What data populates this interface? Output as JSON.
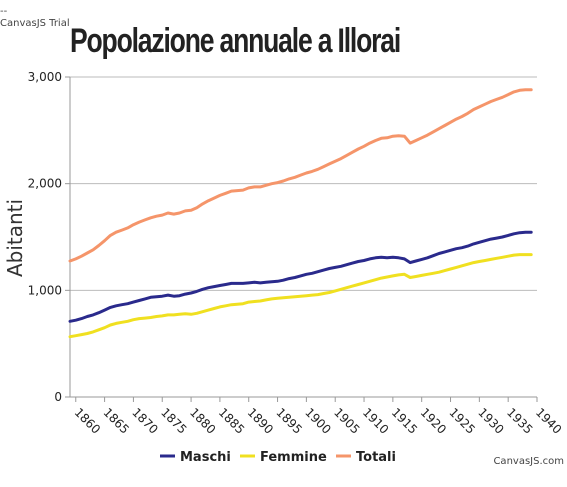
{
  "trial_text": "--\nCanvasJS Trial",
  "credit": "CanvasJS.com",
  "chart_data": {
    "type": "line",
    "title": "Popolazione annuale a Illorai",
    "xlabel": "",
    "ylabel": "Abitanti",
    "xlim": [
      1859,
      1940
    ],
    "ylim": [
      0,
      3000
    ],
    "y_ticks": [
      0,
      1000,
      2000,
      3000
    ],
    "y_tick_labels": [
      "0",
      "1,000",
      "2,000",
      "3,000"
    ],
    "x_ticks": [
      1860,
      1865,
      1870,
      1875,
      1880,
      1885,
      1890,
      1895,
      1900,
      1905,
      1910,
      1915,
      1920,
      1925,
      1930,
      1935,
      1940
    ],
    "grid": "horizontal",
    "legend_position": "bottom",
    "x": [
      1859,
      1860,
      1861,
      1862,
      1863,
      1864,
      1865,
      1866,
      1867,
      1868,
      1869,
      1870,
      1871,
      1872,
      1873,
      1874,
      1875,
      1876,
      1877,
      1878,
      1879,
      1880,
      1881,
      1882,
      1883,
      1884,
      1885,
      1886,
      1887,
      1888,
      1889,
      1890,
      1891,
      1892,
      1893,
      1894,
      1895,
      1896,
      1897,
      1898,
      1899,
      1900,
      1901,
      1902,
      1903,
      1904,
      1905,
      1906,
      1907,
      1908,
      1909,
      1910,
      1911,
      1912,
      1913,
      1914,
      1915,
      1916,
      1917,
      1918,
      1919,
      1920,
      1921,
      1922,
      1923,
      1924,
      1925,
      1926,
      1927,
      1928,
      1929,
      1930,
      1931,
      1932,
      1933,
      1934,
      1935,
      1936,
      1937,
      1938,
      1939
    ],
    "series": [
      {
        "name": "Maschi",
        "color": "#2a2a8c",
        "values": [
          710,
          720,
          735,
          755,
          770,
          790,
          815,
          840,
          855,
          865,
          875,
          890,
          905,
          920,
          935,
          940,
          945,
          955,
          945,
          950,
          965,
          975,
          990,
          1010,
          1025,
          1035,
          1045,
          1055,
          1065,
          1065,
          1065,
          1070,
          1075,
          1070,
          1075,
          1080,
          1085,
          1095,
          1110,
          1120,
          1135,
          1150,
          1160,
          1175,
          1190,
          1205,
          1215,
          1225,
          1240,
          1255,
          1270,
          1280,
          1295,
          1305,
          1310,
          1305,
          1310,
          1305,
          1295,
          1260,
          1275,
          1290,
          1305,
          1325,
          1345,
          1360,
          1375,
          1390,
          1400,
          1415,
          1435,
          1450,
          1465,
          1480,
          1490,
          1500,
          1515,
          1530,
          1540,
          1545,
          1545
        ]
      },
      {
        "name": "Femmine",
        "color": "#f0e020",
        "values": [
          565,
          575,
          585,
          595,
          610,
          630,
          650,
          675,
          690,
          700,
          710,
          725,
          735,
          740,
          745,
          755,
          760,
          770,
          770,
          775,
          780,
          775,
          785,
          800,
          815,
          830,
          845,
          855,
          865,
          870,
          875,
          890,
          895,
          900,
          910,
          920,
          925,
          930,
          935,
          940,
          945,
          950,
          955,
          960,
          970,
          980,
          995,
          1010,
          1025,
          1040,
          1055,
          1070,
          1085,
          1100,
          1115,
          1125,
          1135,
          1145,
          1150,
          1120,
          1130,
          1140,
          1150,
          1160,
          1170,
          1185,
          1200,
          1215,
          1230,
          1245,
          1260,
          1270,
          1280,
          1290,
          1300,
          1310,
          1320,
          1330,
          1335,
          1335,
          1335
        ]
      },
      {
        "name": "Totali",
        "color": "#f5956a",
        "values": [
          1275,
          1295,
          1320,
          1350,
          1380,
          1420,
          1465,
          1515,
          1545,
          1565,
          1585,
          1615,
          1640,
          1660,
          1680,
          1695,
          1705,
          1725,
          1715,
          1725,
          1745,
          1750,
          1775,
          1810,
          1840,
          1865,
          1890,
          1910,
          1930,
          1935,
          1940,
          1960,
          1970,
          1970,
          1985,
          2000,
          2010,
          2025,
          2045,
          2060,
          2080,
          2100,
          2115,
          2135,
          2160,
          2185,
          2210,
          2235,
          2265,
          2295,
          2325,
          2350,
          2380,
          2405,
          2425,
          2430,
          2445,
          2450,
          2445,
          2380,
          2405,
          2430,
          2455,
          2485,
          2515,
          2545,
          2575,
          2605,
          2630,
          2660,
          2695,
          2720,
          2745,
          2770,
          2790,
          2810,
          2835,
          2860,
          2875,
          2880,
          2880
        ]
      }
    ]
  }
}
